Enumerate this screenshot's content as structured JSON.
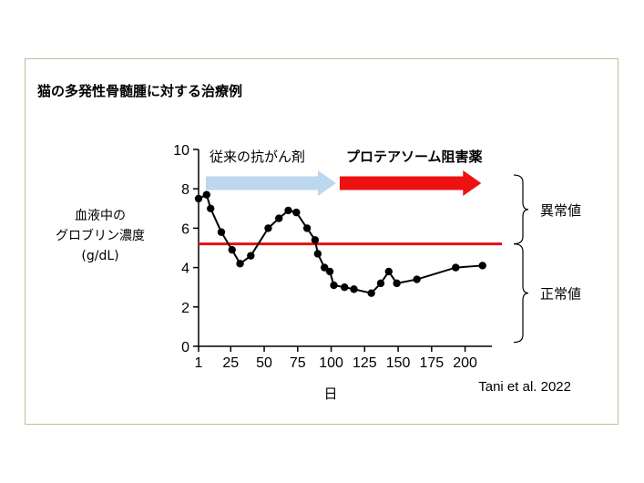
{
  "title": "猫の多発性骨髄腫に対する治療例",
  "ylabel_lines": [
    "血液中の",
    "グロブリン濃度",
    "(g/dL)"
  ],
  "xlabel": "日",
  "citation": "Tani et al. 2022",
  "treatments": [
    {
      "label": "従来の抗がん剤",
      "start_day": 1,
      "end_day": 105,
      "color": "#bcd7ee"
    },
    {
      "label": "プロテアソーム阻害薬",
      "start_day": 105,
      "end_day": 210,
      "color": "#ee1111"
    }
  ],
  "ranges": [
    {
      "label": "異常値",
      "from": 5.2,
      "to": 8.7
    },
    {
      "label": "正常値",
      "from": 0.2,
      "to": 5.2
    }
  ],
  "chart_data": {
    "type": "line",
    "x": [
      1,
      7,
      10,
      18,
      26,
      32,
      40,
      53,
      61,
      68,
      74,
      82,
      88,
      90,
      95,
      99,
      102,
      110,
      117,
      130,
      137,
      143,
      149,
      164,
      193,
      213
    ],
    "values": [
      7.5,
      7.7,
      7.0,
      5.8,
      4.9,
      4.2,
      4.6,
      6.0,
      6.5,
      6.9,
      6.8,
      6.0,
      5.4,
      4.7,
      4.0,
      3.8,
      3.1,
      3.0,
      2.9,
      2.7,
      3.2,
      3.8,
      3.2,
      3.4,
      4.0,
      4.1
    ],
    "threshold": 5.2,
    "threshold_color": "#e31010",
    "line_color": "#000000",
    "xticks": [
      1,
      25,
      50,
      75,
      100,
      125,
      150,
      175,
      200
    ],
    "yticks": [
      0,
      2,
      4,
      6,
      8,
      10
    ],
    "xlim": [
      1,
      220
    ],
    "ylim": [
      0,
      10
    ]
  }
}
